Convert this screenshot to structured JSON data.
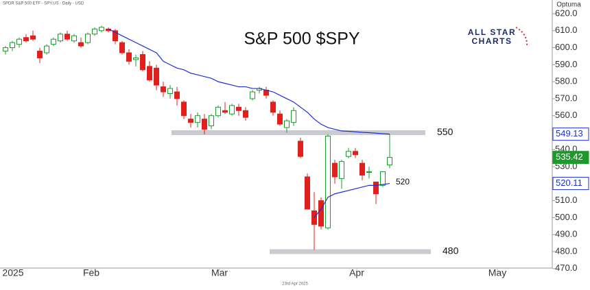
{
  "chart_data": {
    "type": "candlestick",
    "title": "S&P 500 $SPY",
    "source": "SPDR S&P 500 ETF - SPY.US - Daily - USD",
    "brand": "Optuma",
    "logo": [
      "ALL STAR",
      "CHARTS"
    ],
    "date": "23rd Apr 2025",
    "xlim": [
      -0.8,
      79.7
    ],
    "xticks": [
      {
        "value": 1.1,
        "label": "2025"
      },
      {
        "value": 12.5,
        "label": "Feb"
      },
      {
        "value": 31.2,
        "label": "Mar"
      },
      {
        "value": 51.2,
        "label": "Apr"
      },
      {
        "value": 71.7,
        "label": "May"
      }
    ],
    "ylim": [
      470,
      625
    ],
    "yticks": [
      {
        "value": 470,
        "label": "470.0"
      },
      {
        "value": 480,
        "label": "480.0"
      },
      {
        "value": 490,
        "label": "490.0"
      },
      {
        "value": 500,
        "label": "500.0"
      },
      {
        "value": 510,
        "label": "510.0"
      },
      {
        "value": 520,
        "label": "520.0"
      },
      {
        "value": 530,
        "label": "530.0"
      },
      {
        "value": 540,
        "label": "540.0"
      },
      {
        "value": 550,
        "label": "550.0"
      },
      {
        "value": 560,
        "label": "560.0"
      },
      {
        "value": 570,
        "label": "570.0"
      },
      {
        "value": 580,
        "label": "580.0"
      },
      {
        "value": 590,
        "label": "590.0"
      },
      {
        "value": 600,
        "label": "600.0"
      },
      {
        "value": 610,
        "label": "610.0"
      },
      {
        "value": 620,
        "label": "620.0"
      }
    ],
    "candles": {
      "up_color": "#1e9a2c",
      "down_color": "#e0201c",
      "open": [
        598,
        600,
        602,
        606,
        607,
        598,
        597,
        602,
        604,
        608,
        604,
        603,
        603,
        608,
        610,
        611,
        610,
        603,
        597,
        593,
        596,
        589,
        588,
        577,
        573,
        574,
        568,
        558,
        556,
        558,
        554,
        560,
        563,
        561,
        565,
        563,
        570,
        575,
        575,
        568,
        561,
        553,
        556,
        545,
        524,
        504,
        510,
        494,
        532,
        523,
        536,
        539,
        532,
        527,
        521,
        519,
        531
      ],
      "high": [
        601,
        604,
        606,
        608,
        610,
        600,
        602,
        606,
        609,
        610,
        608,
        606,
        609,
        612,
        613,
        612,
        611,
        604,
        599,
        596,
        598,
        592,
        590,
        580,
        578,
        577,
        569,
        561,
        562,
        561,
        561,
        566,
        568,
        567,
        567,
        565,
        575,
        577,
        577,
        569,
        563,
        558,
        565,
        547,
        526,
        515,
        512,
        549,
        534,
        534,
        541,
        541,
        534,
        530,
        521,
        527,
        549
      ],
      "low": [
        596,
        598,
        600,
        603,
        604,
        591,
        596,
        601,
        603,
        604,
        603,
        600,
        602,
        607,
        609,
        609,
        602,
        596,
        590,
        589,
        586,
        580,
        575,
        571,
        570,
        566,
        558,
        553,
        553,
        549,
        552,
        559,
        561,
        560,
        560,
        557,
        569,
        573,
        570,
        560,
        554,
        550,
        554,
        535,
        505,
        481,
        493,
        493,
        520,
        517,
        535,
        535,
        522,
        523,
        508,
        518,
        529
      ],
      "close": [
        600,
        603,
        605,
        604,
        605,
        594,
        601,
        605,
        608,
        605,
        607,
        601,
        608,
        611,
        612,
        610,
        604,
        597,
        592,
        594,
        587,
        581,
        578,
        574,
        576,
        570,
        560,
        556,
        560,
        552,
        560,
        565,
        562,
        566,
        563,
        559,
        574,
        576,
        572,
        562,
        555,
        557,
        563,
        536,
        505,
        496,
        495,
        548,
        524,
        533,
        539,
        537,
        525,
        527,
        514,
        527,
        535.42
      ]
    },
    "lines": [
      {
        "color": "#1c2fd0",
        "values": [
          null,
          null,
          null,
          null,
          null,
          null,
          null,
          null,
          null,
          null,
          null,
          null,
          null,
          null,
          null,
          611,
          609,
          607,
          605,
          603,
          601,
          599,
          597,
          592,
          590,
          588,
          587,
          585,
          584,
          583,
          582,
          580,
          579,
          578,
          577,
          577,
          576,
          576,
          575,
          574,
          572,
          570,
          568,
          565,
          562,
          558,
          555,
          553,
          552,
          551,
          550.8,
          550.5,
          550.2,
          550,
          549.7,
          549.4,
          549.13
        ]
      },
      {
        "color": "#1c2fd0",
        "values": [
          null,
          null,
          null,
          null,
          null,
          null,
          null,
          null,
          null,
          null,
          null,
          null,
          null,
          null,
          null,
          null,
          null,
          null,
          null,
          null,
          null,
          null,
          null,
          null,
          null,
          null,
          null,
          null,
          null,
          null,
          null,
          null,
          null,
          null,
          null,
          null,
          null,
          null,
          null,
          null,
          null,
          null,
          null,
          null,
          null,
          500,
          505,
          512,
          514,
          515,
          516,
          517,
          518,
          519,
          519,
          519.5,
          520.11
        ]
      }
    ],
    "levels": [
      550,
      480
    ],
    "level_color": "#c9cbd0",
    "annotation": "520"
  }
}
